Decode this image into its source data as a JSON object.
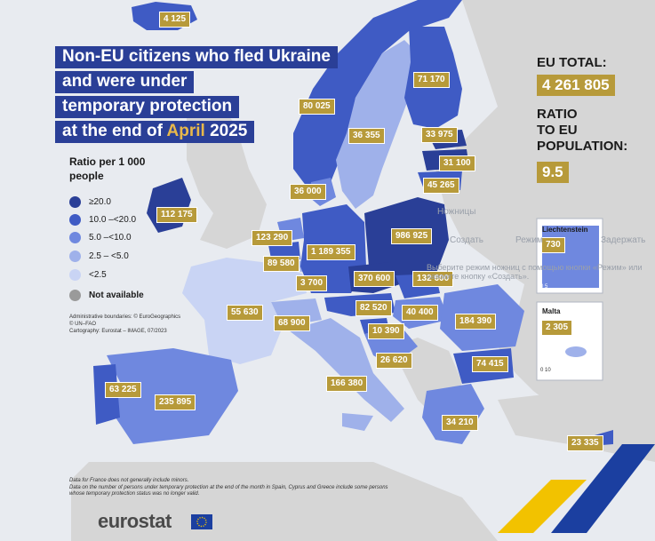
{
  "title": {
    "line1": "Non-EU citizens who fled Ukraine",
    "line2": "and were under",
    "line3": "temporary protection",
    "line4_prefix": "at the end of",
    "line4_month": "April",
    "line4_year": "2025"
  },
  "colors": {
    "class_ge20": "#2a3f97",
    "class_10_20": "#3f5bc4",
    "class_5_10": "#6f88df",
    "class_2_5_5": "#9fb1ea",
    "class_lt2_5": "#c9d4f4",
    "not_available": "#9a9a9a",
    "non_eu_land": "#d6d6d6",
    "sea": "#e8ebf0",
    "label_fill": "#b79a3a",
    "title_fill": "#2a3f97"
  },
  "legend": {
    "title": "Ratio per 1 000 people",
    "items": [
      {
        "label": "≥20.0",
        "color": "#2a3f97"
      },
      {
        "label": "10.0 –<20.0",
        "color": "#3f5bc4"
      },
      {
        "label": "5.0 –<10.0",
        "color": "#6f88df"
      },
      {
        "label": "2.5 – <5.0",
        "color": "#9fb1ea"
      },
      {
        "label": "<2.5",
        "color": "#c9d4f4"
      },
      {
        "label": "Not available",
        "color": "#9a9a9a"
      }
    ]
  },
  "credits": {
    "line1": "Administrative boundaries: © EuroGeographics",
    "line2": "© UN–FAO",
    "line3": "Cartography: Eurostat – IMAGE, 07/2023"
  },
  "kpi": {
    "total_heading": "EU TOTAL:",
    "total_value": "4 261 805",
    "ratio_heading_1": "RATIO",
    "ratio_heading_2": "TO EU",
    "ratio_heading_3": "POPULATION:",
    "ratio_value": "9.5"
  },
  "map_values": {
    "iceland": "4 125",
    "norway": "80 025",
    "sweden": "36 355",
    "finland": "71 170",
    "estonia": "33 975",
    "latvia": "31 100",
    "lithuania": "45 265",
    "denmark": "36 000",
    "ireland": "112 175",
    "netherlands": "123 290",
    "belgium": "89 580",
    "luxembourg": "3 700",
    "germany": "1 189 355",
    "poland": "986 925",
    "czechia": "370 600",
    "slovakia": "132 600",
    "france": "55 630",
    "switzerland": "68 900",
    "austria": "82 520",
    "hungary": "40 400",
    "slovenia": "10 390",
    "croatia": "26 620",
    "romania": "184 390",
    "bulgaria": "74 415",
    "italy": "166 380",
    "spain": "235 895",
    "portugal": "63 225",
    "greece": "34 210",
    "cyprus": "23 335"
  },
  "insets": {
    "liechtenstein_label": "Liechtenstein",
    "liechtenstein_value": "730",
    "liechtenstein_scale": "0    5",
    "malta_label": "Malta",
    "malta_value": "2 305",
    "malta_scale": "0    10"
  },
  "footnotes": {
    "line1": "Data for France does not generally include minors.",
    "line2": "Data on the number of persons under temporary protection at the end of the month in Spain, Cyprus and Greece include some persons whose temporary protection status was no longer valid."
  },
  "brand": "eurostat",
  "overlay": {
    "item1": "Ножницы",
    "item2": "Создать",
    "item3": "Режим",
    "item4": "Задержать",
    "hint": "Выберите режим ножниц с помощью кнопки «Режим» или нажмите кнопку «Создать»."
  }
}
